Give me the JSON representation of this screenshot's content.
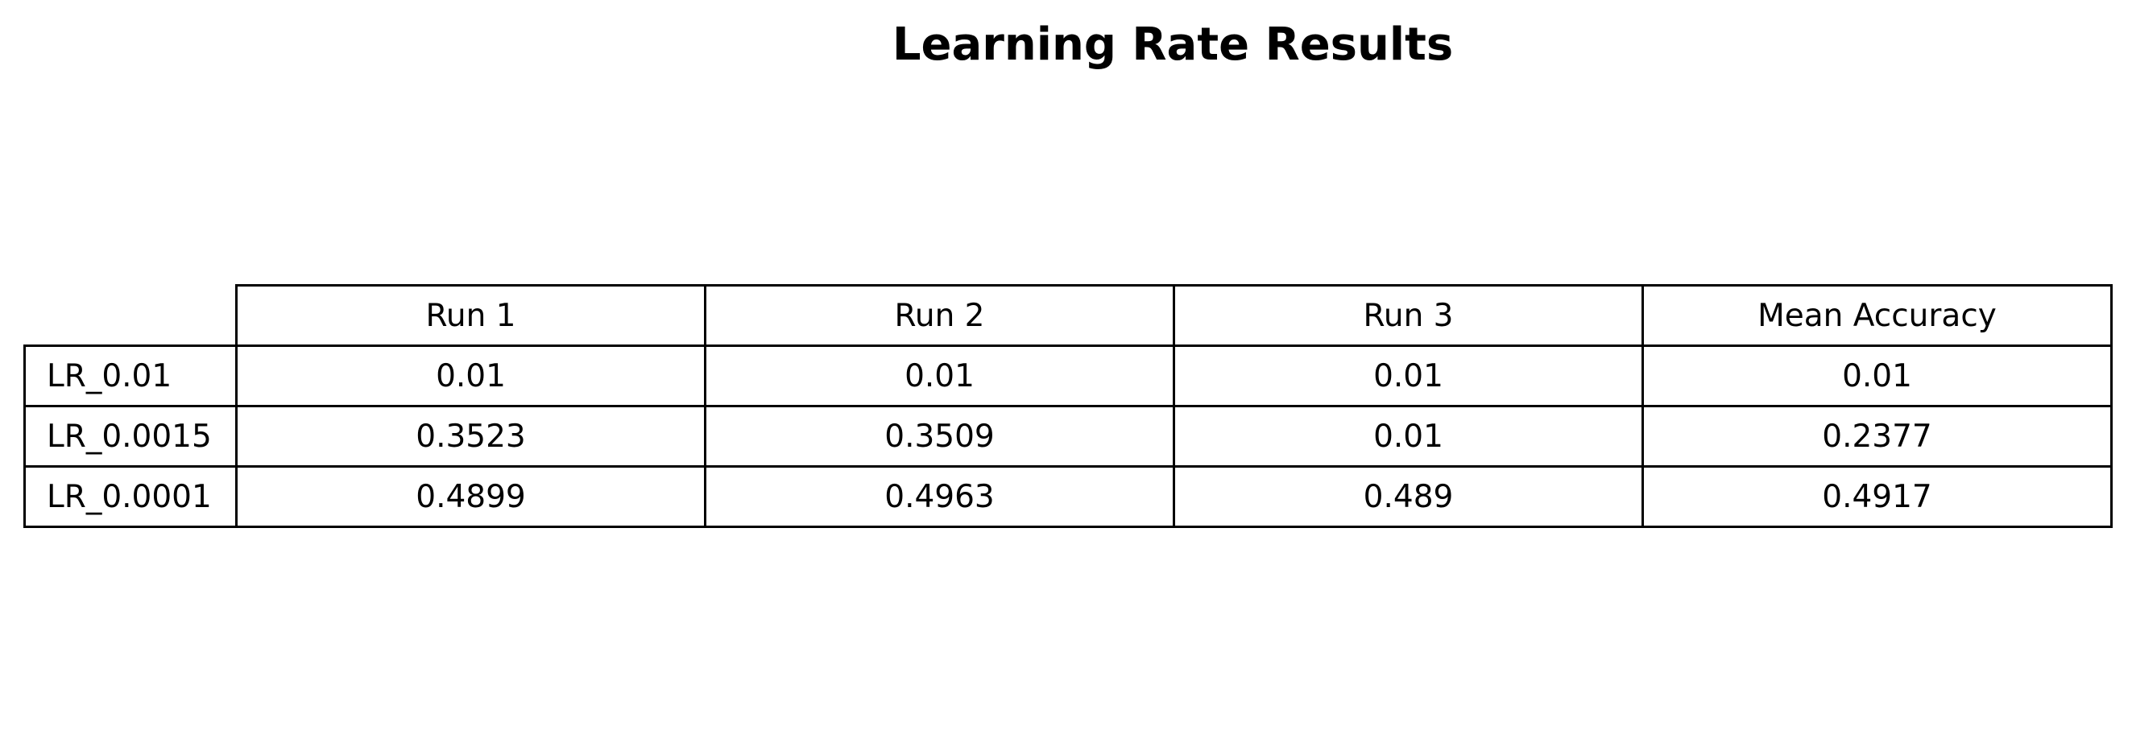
{
  "chart_data": {
    "type": "table",
    "title": "Learning Rate Results",
    "columns": [
      "Run 1",
      "Run 2",
      "Run 3",
      "Mean Accuracy"
    ],
    "rows": [
      {
        "label": "LR_0.01",
        "values": [
          "0.01",
          "0.01",
          "0.01",
          "0.01"
        ]
      },
      {
        "label": "LR_0.0015",
        "values": [
          "0.3523",
          "0.3509",
          "0.01",
          "0.2377"
        ]
      },
      {
        "label": "LR_0.0001",
        "values": [
          "0.4899",
          "0.4963",
          "0.489",
          "0.4917"
        ]
      }
    ],
    "colors": {
      "text": "#000000",
      "grid": "#000000",
      "background": "#ffffff"
    }
  }
}
